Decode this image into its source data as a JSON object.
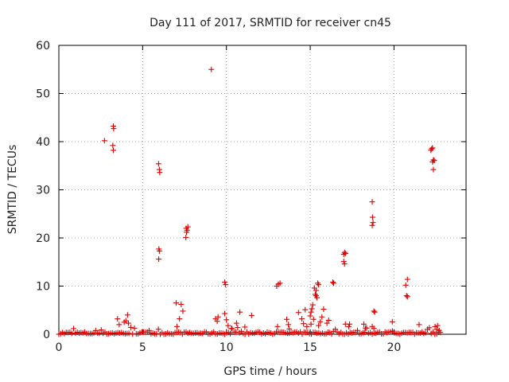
{
  "chart_data": {
    "type": "scatter",
    "title": "Day 111 of 2017, SRMTID for receiver cn45",
    "xlabel": "GPS time / hours",
    "ylabel": "SRMTID / TECUs",
    "xlim": [
      0,
      24.3
    ],
    "ylim": [
      0,
      60
    ],
    "x_ticks": [
      0,
      5,
      10,
      15,
      20
    ],
    "y_ticks": [
      0,
      10,
      20,
      30,
      40,
      50,
      60
    ],
    "grid": true,
    "marker": "+",
    "color": "#e00000",
    "series": [
      {
        "name": "SRMTID",
        "points": [
          [
            2.72,
            40.2
          ],
          [
            3.25,
            43.2
          ],
          [
            3.27,
            42.7
          ],
          [
            3.22,
            39.2
          ],
          [
            3.25,
            38.2
          ],
          [
            3.5,
            3.2
          ],
          [
            3.6,
            2.0
          ],
          [
            3.9,
            2.5
          ],
          [
            4.0,
            2.8
          ],
          [
            4.1,
            4.0
          ],
          [
            4.15,
            2.3
          ],
          [
            5.95,
            35.4
          ],
          [
            6.0,
            34.2
          ],
          [
            6.02,
            33.6
          ],
          [
            5.97,
            17.7
          ],
          [
            6.0,
            17.3
          ],
          [
            5.96,
            15.6
          ],
          [
            7.0,
            6.5
          ],
          [
            7.05,
            1.6
          ],
          [
            7.3,
            6.2
          ],
          [
            7.4,
            4.8
          ],
          [
            7.6,
            22.0
          ],
          [
            7.65,
            21.6
          ],
          [
            7.7,
            22.3
          ],
          [
            7.58,
            20.1
          ],
          [
            7.62,
            21.2
          ],
          [
            7.2,
            3.2
          ],
          [
            9.1,
            55.0
          ],
          [
            9.35,
            3.2
          ],
          [
            9.45,
            2.7
          ],
          [
            9.5,
            3.6
          ],
          [
            9.9,
            10.8
          ],
          [
            9.95,
            10.3
          ],
          [
            9.9,
            4.3
          ],
          [
            10.0,
            3.0
          ],
          [
            10.1,
            1.8
          ],
          [
            10.3,
            1.2
          ],
          [
            10.6,
            2.3
          ],
          [
            10.8,
            4.6
          ],
          [
            11.1,
            1.5
          ],
          [
            11.5,
            3.9
          ],
          [
            13.0,
            10.0
          ],
          [
            13.1,
            10.4
          ],
          [
            13.2,
            10.6
          ],
          [
            13.05,
            1.6
          ],
          [
            13.6,
            3.1
          ],
          [
            13.7,
            2.0
          ],
          [
            13.75,
            1.1
          ],
          [
            14.3,
            4.5
          ],
          [
            14.5,
            3.2
          ],
          [
            14.6,
            2.2
          ],
          [
            14.7,
            5.1
          ],
          [
            14.8,
            1.6
          ],
          [
            15.0,
            3.8
          ],
          [
            15.05,
            4.6
          ],
          [
            15.1,
            5.3
          ],
          [
            15.15,
            6.1
          ],
          [
            15.2,
            3.1
          ],
          [
            15.05,
            2.1
          ],
          [
            15.25,
            9.6
          ],
          [
            15.3,
            8.3
          ],
          [
            15.35,
            8.0
          ],
          [
            15.4,
            7.6
          ],
          [
            15.45,
            10.6
          ],
          [
            15.5,
            10.3
          ],
          [
            15.35,
            9.1
          ],
          [
            15.5,
            1.8
          ],
          [
            15.6,
            2.6
          ],
          [
            15.7,
            3.6
          ],
          [
            15.8,
            5.2
          ],
          [
            16.1,
            2.9
          ],
          [
            16.0,
            2.3
          ],
          [
            16.35,
            10.8
          ],
          [
            16.4,
            10.6
          ],
          [
            17.0,
            16.6
          ],
          [
            17.05,
            17.0
          ],
          [
            17.1,
            16.8
          ],
          [
            17.0,
            15.1
          ],
          [
            17.05,
            14.6
          ],
          [
            17.1,
            2.1
          ],
          [
            17.3,
            1.6
          ],
          [
            17.35,
            2.1
          ],
          [
            18.2,
            2.1
          ],
          [
            18.3,
            1.3
          ],
          [
            18.7,
            27.5
          ],
          [
            18.72,
            24.3
          ],
          [
            18.75,
            23.2
          ],
          [
            18.7,
            22.6
          ],
          [
            18.8,
            4.8
          ],
          [
            18.85,
            4.6
          ],
          [
            18.7,
            1.6
          ],
          [
            18.8,
            1.2
          ],
          [
            19.9,
            2.6
          ],
          [
            20.8,
            11.4
          ],
          [
            20.7,
            10.2
          ],
          [
            20.75,
            8.0
          ],
          [
            20.8,
            7.8
          ],
          [
            21.5,
            2.0
          ],
          [
            22.2,
            38.2
          ],
          [
            22.25,
            38.5
          ],
          [
            22.3,
            38.7
          ],
          [
            22.35,
            36.2
          ],
          [
            22.3,
            35.8
          ],
          [
            22.4,
            36.1
          ],
          [
            22.35,
            34.2
          ],
          [
            22.45,
            1.6
          ],
          [
            22.55,
            1.0
          ],
          [
            22.6,
            1.8
          ],
          [
            22.7,
            0.8
          ]
        ]
      }
    ]
  }
}
